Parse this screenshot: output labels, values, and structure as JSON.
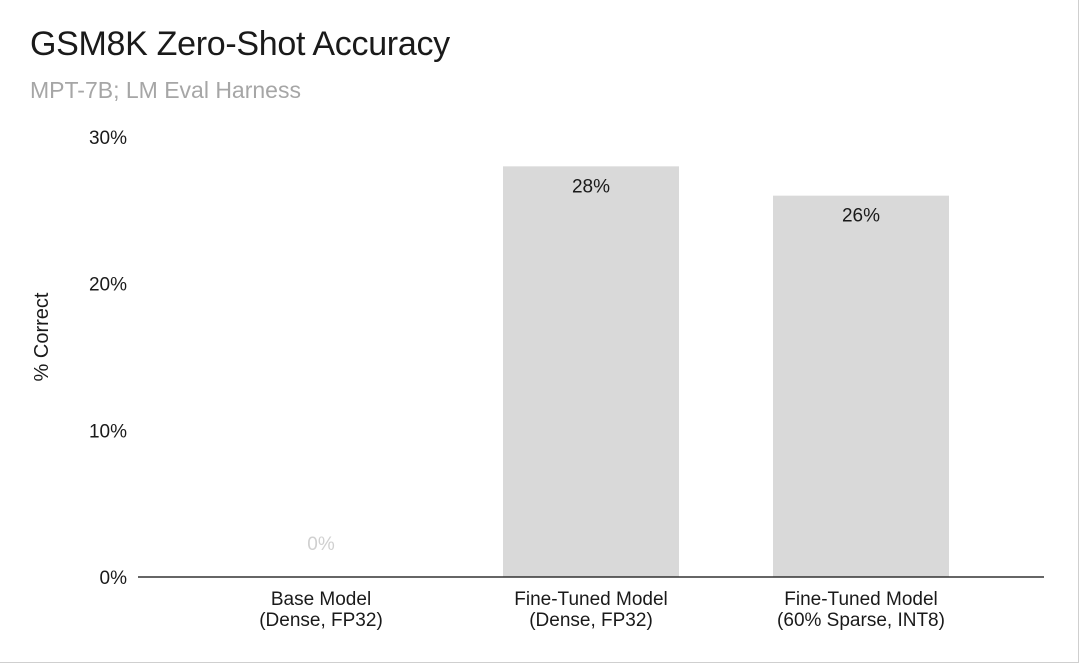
{
  "chart_data": {
    "type": "bar",
    "title": "GSM8K Zero-Shot Accuracy",
    "subtitle": "MPT-7B; LM Eval Harness",
    "ylabel": "% Correct",
    "xlabel": "",
    "ylim": [
      0,
      30
    ],
    "yticks": [
      0,
      10,
      20,
      30
    ],
    "ytick_labels": [
      "0%",
      "10%",
      "20%",
      "30%"
    ],
    "categories": [
      [
        "Base Model",
        "(Dense, FP32)"
      ],
      [
        "Fine-Tuned Model",
        "(Dense, FP32)"
      ],
      [
        "Fine-Tuned Model",
        "(60% Sparse, INT8)"
      ]
    ],
    "values": [
      0,
      28,
      26
    ],
    "data_labels": [
      "0%",
      "28%",
      "26%"
    ],
    "bar_color": "#d9d9d9",
    "grid": false,
    "legend": "none"
  }
}
